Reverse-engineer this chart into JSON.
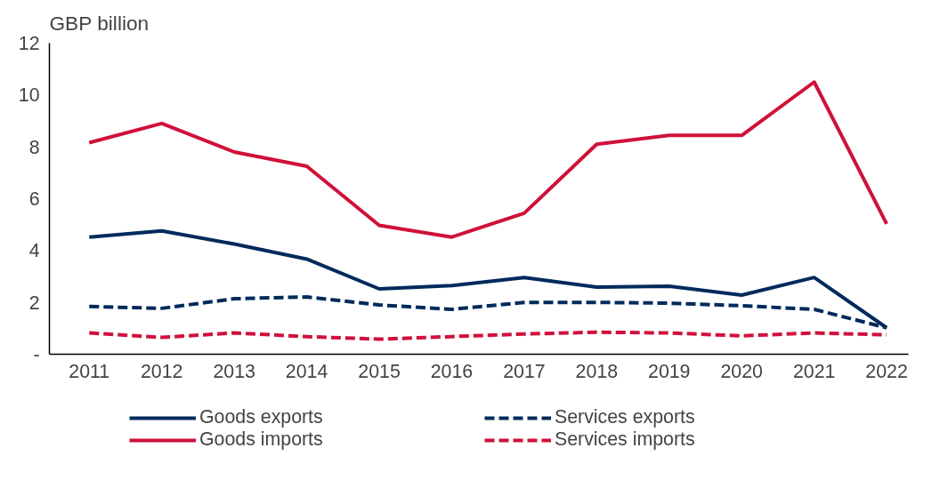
{
  "chart_data": {
    "type": "line",
    "ylabel": "GBP billion",
    "categories": [
      "2011",
      "2012",
      "2013",
      "2014",
      "2015",
      "2016",
      "2017",
      "2018",
      "2019",
      "2020",
      "2021",
      "2022"
    ],
    "series": [
      {
        "name": "Goods exports",
        "color": "#002a5c",
        "line_style": "solid",
        "values": [
          4.52,
          4.76,
          4.25,
          3.67,
          2.52,
          2.65,
          2.96,
          2.59,
          2.62,
          2.28,
          2.96,
          1.02
        ]
      },
      {
        "name": "Goods imports",
        "color": "#d0103a",
        "line_style": "solid",
        "values": [
          8.16,
          8.9,
          7.8,
          7.25,
          4.97,
          4.52,
          5.44,
          8.1,
          8.44,
          8.44,
          10.5,
          5.03
        ]
      },
      {
        "name": "Services exports",
        "color": "#002a5c",
        "line_style": "dashed",
        "values": [
          1.84,
          1.77,
          2.14,
          2.21,
          1.9,
          1.73,
          2.0,
          2.0,
          1.97,
          1.87,
          1.73,
          1.02
        ]
      },
      {
        "name": "Services imports",
        "color": "#d0103a",
        "line_style": "dashed",
        "values": [
          0.82,
          0.65,
          0.82,
          0.68,
          0.58,
          0.68,
          0.78,
          0.85,
          0.82,
          0.71,
          0.82,
          0.75
        ]
      }
    ],
    "ylim": [
      0,
      12
    ],
    "yticks": [
      {
        "value": 0,
        "label": "-"
      },
      2,
      4,
      6,
      8,
      10,
      12
    ],
    "grid": false,
    "legend": "bottom",
    "marker": "none"
  }
}
